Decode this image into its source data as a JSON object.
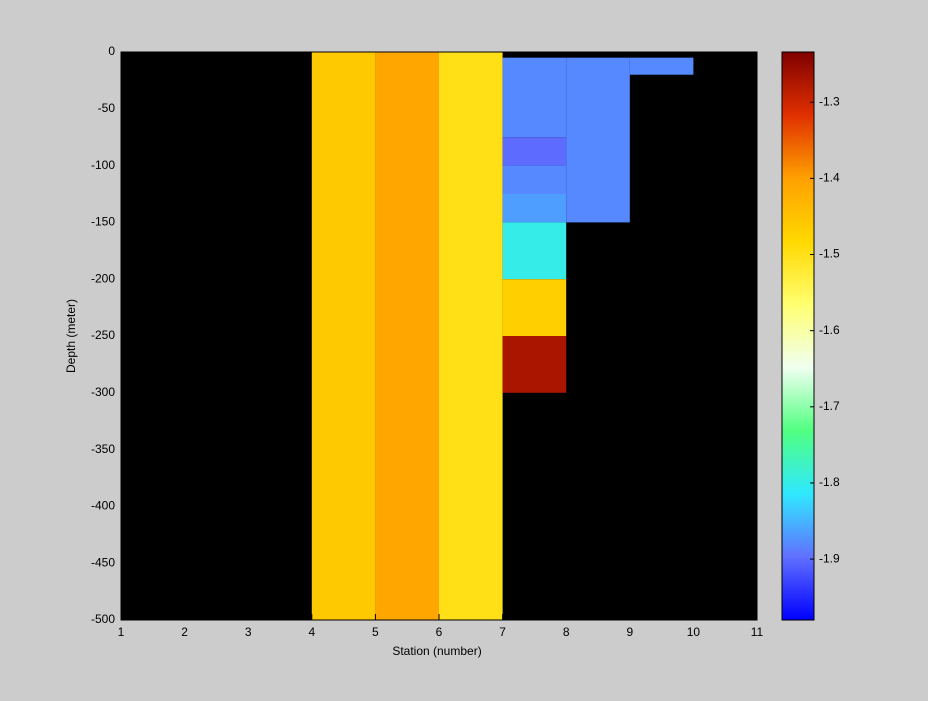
{
  "chart_data": {
    "type": "heatmap",
    "xlabel": "Station (number)",
    "ylabel": "Depth (meter)",
    "xlim": [
      1,
      11
    ],
    "xticks": [
      1,
      2,
      3,
      4,
      5,
      6,
      7,
      8,
      9,
      10,
      11
    ],
    "ylim": [
      -500,
      0
    ],
    "yticks": [
      0,
      -50,
      -100,
      -150,
      -200,
      -250,
      -300,
      -350,
      -400,
      -450,
      -500
    ],
    "clim": [
      -1.98,
      -1.234
    ],
    "cticks": [
      -1.3,
      -1.4,
      -1.5,
      -1.6,
      -1.7,
      -1.8,
      -1.9
    ],
    "colormap": [
      "#0000ff",
      "#6070ff",
      "#30e8ff",
      "#50ff80",
      "#f0fff0",
      "#ffff70",
      "#ffd800",
      "#ffa000",
      "#e03000",
      "#800000"
    ],
    "background": "#000000",
    "cells": [
      {
        "x": [
          4,
          5
        ],
        "y": [
          0,
          -500
        ],
        "value": -1.46
      },
      {
        "x": [
          5,
          6
        ],
        "y": [
          0,
          -500
        ],
        "value": -1.41
      },
      {
        "x": [
          6,
          7
        ],
        "y": [
          0,
          -500
        ],
        "value": -1.5
      },
      {
        "x": [
          7,
          8
        ],
        "y": [
          -5,
          -75
        ],
        "value": -1.88
      },
      {
        "x": [
          7,
          8
        ],
        "y": [
          -75,
          -100
        ],
        "value": -1.9
      },
      {
        "x": [
          7,
          8
        ],
        "y": [
          -100,
          -125
        ],
        "value": -1.88
      },
      {
        "x": [
          7,
          8
        ],
        "y": [
          -125,
          -150
        ],
        "value": -1.865
      },
      {
        "x": [
          7,
          8
        ],
        "y": [
          -150,
          -200
        ],
        "value": -1.8
      },
      {
        "x": [
          7,
          8
        ],
        "y": [
          -200,
          -250
        ],
        "value": -1.47
      },
      {
        "x": [
          7,
          8
        ],
        "y": [
          -250,
          -300
        ],
        "value": -1.27
      },
      {
        "x": [
          8,
          9
        ],
        "y": [
          -5,
          -150
        ],
        "value": -1.88
      },
      {
        "x": [
          9,
          10
        ],
        "y": [
          -5,
          -20
        ],
        "value": -1.88
      }
    ]
  }
}
